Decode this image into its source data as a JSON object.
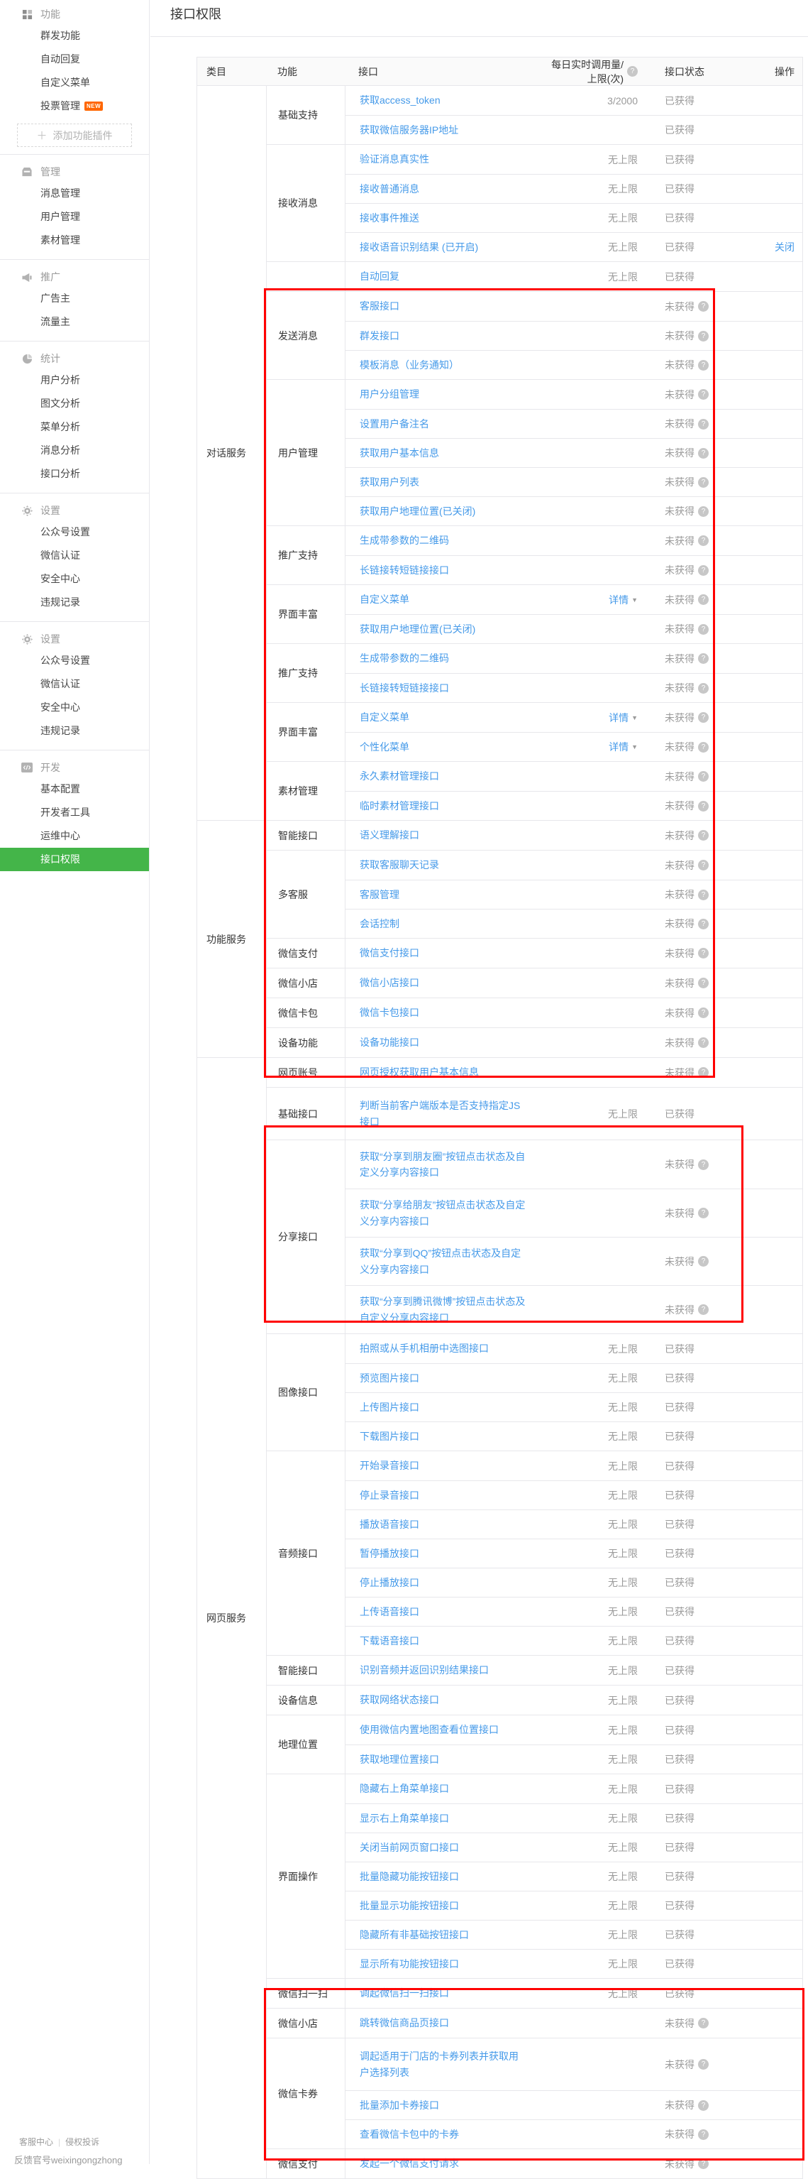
{
  "colors": {
    "accent_green": "#44b549",
    "link_blue": "#459ae9",
    "highlight_red": "#ff0000",
    "badge_orange": "#ff6600",
    "selected_text": "#ffffff"
  },
  "header": {
    "title": "接口权限"
  },
  "sidebar": {
    "plugin_button": {
      "icon": "plus-icon",
      "label": "添加功能插件"
    },
    "sections": [
      {
        "header": {
          "label": "功能",
          "icon": "grid-icon"
        },
        "items": [
          {
            "label": "群发功能"
          },
          {
            "label": "自动回复"
          },
          {
            "label": "自定义菜单"
          },
          {
            "label": "投票管理",
            "badge": "NEW"
          }
        ]
      },
      {
        "header": {
          "label": "管理",
          "icon": "inbox-icon"
        },
        "items": [
          {
            "label": "消息管理"
          },
          {
            "label": "用户管理"
          },
          {
            "label": "素材管理"
          }
        ]
      },
      {
        "header": {
          "label": "推广",
          "icon": "megaphone-icon"
        },
        "items": [
          {
            "label": "广告主"
          },
          {
            "label": "流量主"
          }
        ]
      },
      {
        "header": {
          "label": "统计",
          "icon": "pie-icon"
        },
        "items": [
          {
            "label": "用户分析"
          },
          {
            "label": "图文分析"
          },
          {
            "label": "菜单分析"
          },
          {
            "label": "消息分析"
          },
          {
            "label": "接口分析"
          }
        ]
      },
      {
        "header": {
          "label": "设置",
          "icon": "gear-icon"
        },
        "items": [
          {
            "label": "公众号设置"
          },
          {
            "label": "微信认证"
          },
          {
            "label": "安全中心"
          },
          {
            "label": "违规记录"
          }
        ]
      },
      {
        "header": {
          "label": "设置",
          "icon": "gear-icon"
        },
        "items": [
          {
            "label": "公众号设置"
          },
          {
            "label": "微信认证"
          },
          {
            "label": "安全中心"
          },
          {
            "label": "违规记录"
          }
        ]
      },
      {
        "header": {
          "label": "开发",
          "icon": "code-icon"
        },
        "items": [
          {
            "label": "基本配置"
          },
          {
            "label": "开发者工具"
          },
          {
            "label": "运维中心"
          },
          {
            "label": "接口权限",
            "id": "api-permission",
            "selected": true
          }
        ]
      }
    ]
  },
  "table": {
    "columns": {
      "category": "类目",
      "func": "功能",
      "api": "接口",
      "quota": "每日实时调用量/上限(次)",
      "quota_help_icon": "question-icon",
      "status": "接口状态",
      "action": "操作"
    },
    "sections": [
      {
        "category": "对话服务",
        "groups": [
          {
            "func": "基础支持",
            "rows": [
              {
                "api": "获取access_token",
                "quota": "3/2000",
                "status": "已获得"
              },
              {
                "api": "获取微信服务器IP地址",
                "status": "已获得"
              }
            ]
          },
          {
            "func": "接收消息",
            "rows": [
              {
                "api": "验证消息真实性",
                "quota": "无上限",
                "status": "已获得"
              },
              {
                "api": "接收普通消息",
                "quota": "无上限",
                "status": "已获得"
              },
              {
                "api": "接收事件推送",
                "quota": "无上限",
                "status": "已获得"
              },
              {
                "api": "接收语音识别结果 (已开启)",
                "quota": "无上限",
                "status": "已获得",
                "action": "关闭"
              }
            ]
          },
          {
            "func": "",
            "rows": [
              {
                "api": "自动回复",
                "quota": "无上限",
                "status": "已获得"
              }
            ]
          },
          {
            "func": "发送消息",
            "rows": [
              {
                "api": "客服接口",
                "status": "未获得",
                "help": true
              },
              {
                "api": "群发接口",
                "status": "未获得",
                "help": true
              },
              {
                "api": "模板消息（业务通知）",
                "status": "未获得",
                "help": true
              }
            ]
          },
          {
            "func": "用户管理",
            "rows": [
              {
                "api": "用户分组管理",
                "status": "未获得",
                "help": true
              },
              {
                "api": "设置用户备注名",
                "status": "未获得",
                "help": true
              },
              {
                "api": "获取用户基本信息",
                "status": "未获得",
                "help": true
              },
              {
                "api": "获取用户列表",
                "status": "未获得",
                "help": true
              },
              {
                "api": "获取用户地理位置(已关闭)",
                "status": "未获得",
                "help": true
              }
            ]
          },
          {
            "func": "推广支持",
            "rows": [
              {
                "api": "生成带参数的二维码",
                "status": "未获得",
                "help": true
              },
              {
                "api": "长链接转短链接接口",
                "status": "未获得",
                "help": true
              }
            ]
          },
          {
            "func": "界面丰富",
            "rows": [
              {
                "api": "自定义菜单",
                "detail": "详情",
                "status": "未获得",
                "help": true
              },
              {
                "api": "获取用户地理位置(已关闭)",
                "status": "未获得",
                "help": true
              }
            ]
          },
          {
            "func": "推广支持",
            "rows": [
              {
                "api": "生成带参数的二维码",
                "status": "未获得",
                "help": true
              },
              {
                "api": "长链接转短链接接口",
                "status": "未获得",
                "help": true
              }
            ]
          },
          {
            "func": "界面丰富",
            "rows": [
              {
                "api": "自定义菜单",
                "detail": "详情",
                "status": "未获得",
                "help": true
              },
              {
                "api": "个性化菜单",
                "detail": "详情",
                "status": "未获得",
                "help": true
              }
            ]
          },
          {
            "func": "素材管理",
            "rows": [
              {
                "api": "永久素材管理接口",
                "status": "未获得",
                "help": true
              },
              {
                "api": "临时素材管理接口",
                "status": "未获得",
                "help": true
              }
            ]
          }
        ]
      },
      {
        "category": "功能服务",
        "groups": [
          {
            "func": "智能接口",
            "rows": [
              {
                "api": "语义理解接口",
                "status": "未获得",
                "help": true
              }
            ]
          },
          {
            "func": "多客服",
            "rows": [
              {
                "api": "获取客服聊天记录",
                "status": "未获得",
                "help": true
              },
              {
                "api": "客服管理",
                "status": "未获得",
                "help": true
              },
              {
                "api": "会话控制",
                "status": "未获得",
                "help": true
              }
            ]
          },
          {
            "func": "微信支付",
            "rows": [
              {
                "api": "微信支付接口",
                "status": "未获得",
                "help": true
              }
            ]
          },
          {
            "func": "微信小店",
            "rows": [
              {
                "api": "微信小店接口",
                "status": "未获得",
                "help": true
              }
            ]
          },
          {
            "func": "微信卡包",
            "rows": [
              {
                "api": "微信卡包接口",
                "status": "未获得",
                "help": true
              }
            ]
          },
          {
            "func": "设备功能",
            "rows": [
              {
                "api": "设备功能接口",
                "status": "未获得",
                "help": true
              }
            ]
          }
        ]
      },
      {
        "category": "网页服务",
        "groups": [
          {
            "func": "网页账号",
            "rows": [
              {
                "api": "网页授权获取用户基本信息",
                "status": "未获得",
                "help": true
              }
            ]
          },
          {
            "func": "基础接口",
            "rows": [
              {
                "api": "判断当前客户端版本是否支持指定JS接口",
                "quota": "无上限",
                "status": "已获得"
              }
            ]
          },
          {
            "func": "分享接口",
            "rows": [
              {
                "api": "获取“分享到朋友圈”按钮点击状态及自定义分享内容接口",
                "status": "未获得",
                "help": true
              },
              {
                "api": "获取“分享给朋友”按钮点击状态及自定义分享内容接口",
                "status": "未获得",
                "help": true
              },
              {
                "api": "获取“分享到QQ”按钮点击状态及自定义分享内容接口",
                "status": "未获得",
                "help": true
              },
              {
                "api": "获取“分享到腾讯微博”按钮点击状态及自定义分享内容接口",
                "status": "未获得",
                "help": true
              }
            ]
          },
          {
            "func": "图像接口",
            "rows": [
              {
                "api": "拍照或从手机相册中选图接口",
                "quota": "无上限",
                "status": "已获得"
              },
              {
                "api": "预览图片接口",
                "quota": "无上限",
                "status": "已获得"
              },
              {
                "api": "上传图片接口",
                "quota": "无上限",
                "status": "已获得"
              },
              {
                "api": "下载图片接口",
                "quota": "无上限",
                "status": "已获得"
              }
            ]
          },
          {
            "func": "音频接口",
            "rows": [
              {
                "api": "开始录音接口",
                "quota": "无上限",
                "status": "已获得"
              },
              {
                "api": "停止录音接口",
                "quota": "无上限",
                "status": "已获得"
              },
              {
                "api": "播放语音接口",
                "quota": "无上限",
                "status": "已获得"
              },
              {
                "api": "暂停播放接口",
                "quota": "无上限",
                "status": "已获得"
              },
              {
                "api": "停止播放接口",
                "quota": "无上限",
                "status": "已获得"
              },
              {
                "api": "上传语音接口",
                "quota": "无上限",
                "status": "已获得"
              },
              {
                "api": "下载语音接口",
                "quota": "无上限",
                "status": "已获得"
              }
            ]
          },
          {
            "func": "智能接口",
            "rows": [
              {
                "api": "识别音频并返回识别结果接口",
                "quota": "无上限",
                "status": "已获得"
              }
            ]
          },
          {
            "func": "设备信息",
            "rows": [
              {
                "api": "获取网络状态接口",
                "quota": "无上限",
                "status": "已获得"
              }
            ]
          },
          {
            "func": "地理位置",
            "rows": [
              {
                "api": "使用微信内置地图查看位置接口",
                "quota": "无上限",
                "status": "已获得"
              },
              {
                "api": "获取地理位置接口",
                "quota": "无上限",
                "status": "已获得"
              }
            ]
          },
          {
            "func": "界面操作",
            "rows": [
              {
                "api": "隐藏右上角菜单接口",
                "quota": "无上限",
                "status": "已获得"
              },
              {
                "api": "显示右上角菜单接口",
                "quota": "无上限",
                "status": "已获得"
              },
              {
                "api": "关闭当前网页窗口接口",
                "quota": "无上限",
                "status": "已获得"
              },
              {
                "api": "批量隐藏功能按钮接口",
                "quota": "无上限",
                "status": "已获得"
              },
              {
                "api": "批量显示功能按钮接口",
                "quota": "无上限",
                "status": "已获得"
              },
              {
                "api": "隐藏所有非基础按钮接口",
                "quota": "无上限",
                "status": "已获得"
              },
              {
                "api": "显示所有功能按钮接口",
                "quota": "无上限",
                "status": "已获得"
              }
            ]
          },
          {
            "func": "微信扫一扫",
            "rows": [
              {
                "api": "调起微信扫一扫接口",
                "quota": "无上限",
                "status": "已获得"
              }
            ]
          },
          {
            "func": "微信小店",
            "rows": [
              {
                "api": "跳转微信商品页接口",
                "status": "未获得",
                "help": true
              }
            ]
          },
          {
            "func": "微信卡券",
            "rows": [
              {
                "api": "调起适用于门店的卡券列表并获取用户选择列表",
                "status": "未获得",
                "help": true
              },
              {
                "api": "批量添加卡券接口",
                "status": "未获得",
                "help": true
              },
              {
                "api": "查看微信卡包中的卡券",
                "status": "未获得",
                "help": true
              }
            ]
          },
          {
            "func": "微信支付",
            "rows": [
              {
                "api": "发起一个微信支付请求",
                "status": "未获得",
                "help": true
              }
            ]
          }
        ]
      }
    ]
  },
  "footer": {
    "service": "客服中心",
    "complaint": "侵权投诉",
    "feedback": "反馈官号weixingongzhong"
  }
}
